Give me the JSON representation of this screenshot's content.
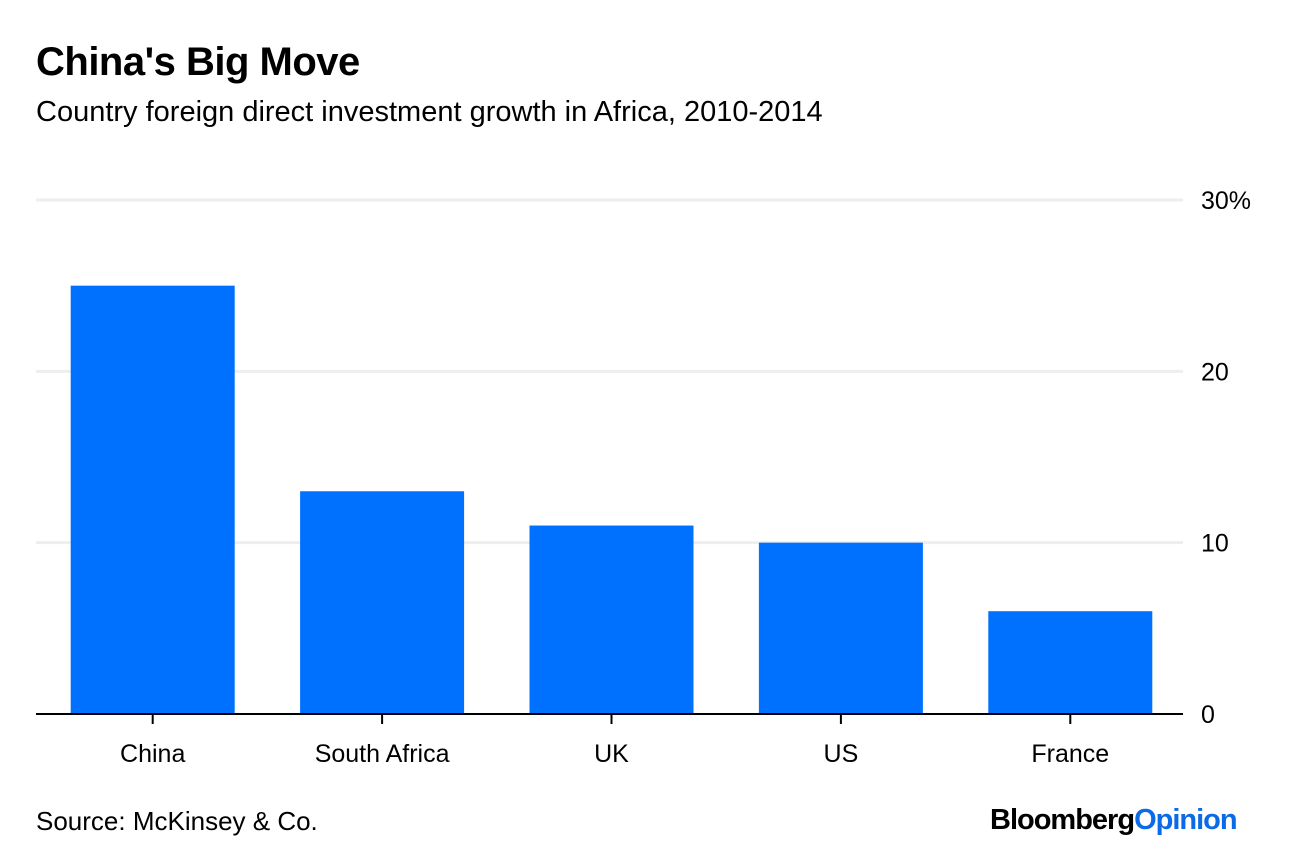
{
  "header": {
    "title": "China's Big Move",
    "subtitle": "Country foreign direct investment growth in Africa, 2010-2014"
  },
  "footer": {
    "source": "Source: McKinsey & Co.",
    "brand_primary": "Bloomberg",
    "brand_secondary": "Opinion"
  },
  "colors": {
    "bar": "#0070ff",
    "brand_accent": "#0a6ae8",
    "gridline": "#eeeeee",
    "axis": "#000000"
  },
  "chart_data": {
    "type": "bar",
    "title": "China's Big Move",
    "subtitle": "Country foreign direct investment growth in Africa, 2010-2014",
    "categories": [
      "China",
      "South Africa",
      "UK",
      "US",
      "France"
    ],
    "values": [
      25,
      13,
      11,
      10,
      6
    ],
    "xlabel": "",
    "ylabel": "",
    "ylim": [
      0,
      30
    ],
    "yticks": [
      0,
      10,
      20,
      30
    ],
    "ytick_labels": [
      "0",
      "10",
      "20",
      "30%"
    ],
    "y_axis_side": "right",
    "grid": true,
    "legend": "none",
    "unit": "%"
  }
}
